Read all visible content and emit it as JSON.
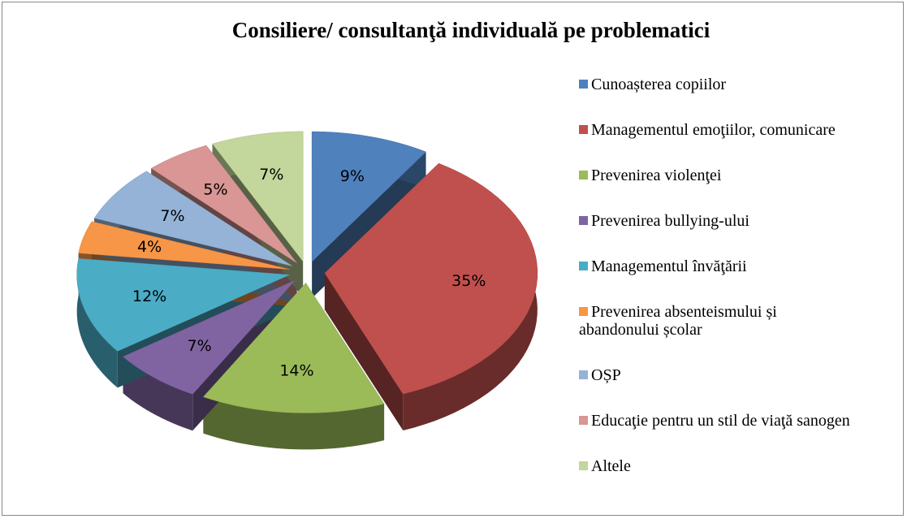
{
  "chart_data": {
    "type": "pie",
    "title": "Consiliere/ consultanţă individuală pe problematici",
    "categories": [
      "Cunoașterea copiilor",
      "Managementul emoţiilor, comunicare",
      "Prevenirea violenţei",
      "Prevenirea bullying-ului",
      "Managementul învăţării",
      "Prevenirea absenteismului și abandonului școlar",
      "OȘP",
      "Educaţie pentru un stil de viaţă sanogen",
      "Altele"
    ],
    "values": [
      9,
      35,
      14,
      7,
      12,
      4,
      7,
      5,
      7
    ],
    "value_labels": [
      "9%",
      "35%",
      "14%",
      "7%",
      "12%",
      "4%",
      "7%",
      "5%",
      "7%"
    ],
    "colors": [
      "#4f81bd",
      "#c0504d",
      "#9bbb59",
      "#8064a2",
      "#4bacc6",
      "#f79646",
      "#95b3d7",
      "#d99694",
      "#c3d69b"
    ],
    "legend": "right"
  }
}
